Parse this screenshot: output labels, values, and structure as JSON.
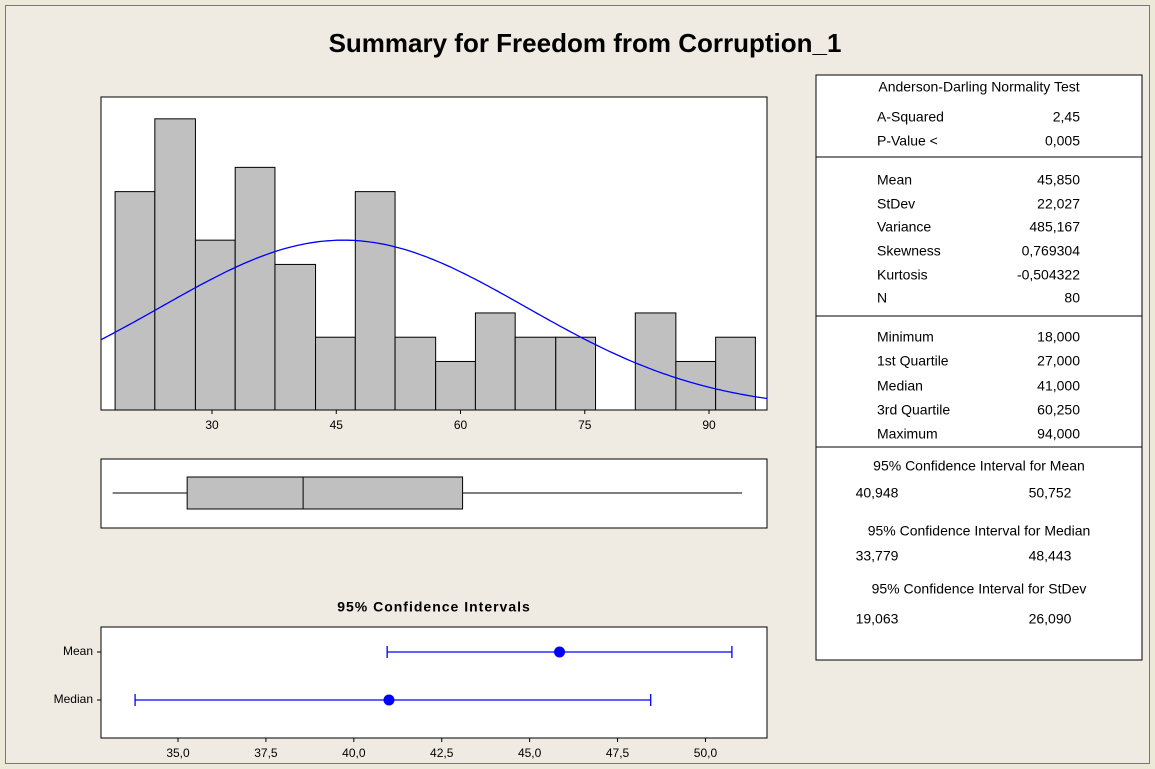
{
  "title": "Summary for Freedom from Corruption_1",
  "chart_data": [
    {
      "type": "histogram",
      "bins": [
        18.3,
        23.1,
        28.0,
        32.8,
        37.6,
        42.5,
        47.3,
        52.1,
        57.0,
        61.8,
        66.6,
        71.5,
        76.3,
        81.1,
        86.0,
        90.8,
        95.6
      ],
      "values": [
        9,
        12,
        7,
        10,
        6,
        3,
        9,
        3,
        2,
        4,
        3,
        3,
        0,
        4,
        2,
        3
      ],
      "color": "#c0c0c0",
      "xlim": [
        16.6,
        97.0
      ],
      "xticks": [
        30,
        45,
        60,
        75,
        90
      ],
      "ylim": [
        0,
        12.9
      ],
      "fit": {
        "mean": 45.85,
        "stdev": 22.027,
        "color": "#0000ff"
      }
    },
    {
      "type": "box",
      "min": 18,
      "q1": 27,
      "median": 41,
      "q3": 60.25,
      "max": 94,
      "color": "#c0c0c0",
      "xlim": [
        16.6,
        97.0
      ]
    },
    {
      "type": "interval",
      "title": "95% Confidence Intervals",
      "categories": [
        "Mean",
        "Median"
      ],
      "values": [
        45.85,
        41
      ],
      "lower": [
        40.948,
        33.779
      ],
      "upper": [
        50.752,
        48.443
      ],
      "color": "#0000ff",
      "xlim": [
        32.81,
        51.75
      ],
      "xticks": [
        {
          "value": 35,
          "label": "35,0"
        },
        {
          "value": 37.5,
          "label": "37,5"
        },
        {
          "value": 40,
          "label": "40,0"
        },
        {
          "value": 42.5,
          "label": "42,5"
        },
        {
          "value": 45,
          "label": "45,0"
        },
        {
          "value": 47.5,
          "label": "47,5"
        },
        {
          "value": 50,
          "label": "50,0"
        }
      ]
    }
  ],
  "stats": {
    "sections": [
      {
        "title": "Anderson-Darling Normality Test",
        "rows": [
          [
            "A-Squared",
            "2,45"
          ],
          [
            "P-Value <",
            "0,005"
          ]
        ]
      },
      {
        "rows": [
          [
            "Mean",
            "45,850"
          ],
          [
            "StDev",
            "22,027"
          ],
          [
            "Variance",
            "485,167"
          ],
          [
            "Skewness",
            "0,769304"
          ],
          [
            "Kurtosis",
            "-0,504322"
          ],
          [
            "N",
            "80"
          ]
        ]
      },
      {
        "rows": [
          [
            "Minimum",
            "18,000"
          ],
          [
            "1st Quartile",
            "27,000"
          ],
          [
            "Median",
            "41,000"
          ],
          [
            "3rd Quartile",
            "60,250"
          ],
          [
            "Maximum",
            "94,000"
          ]
        ]
      },
      {
        "intervals": [
          {
            "title": "95% Confidence Interval for Mean",
            "values": [
              "40,948",
              "50,752"
            ]
          },
          {
            "title": "95% Confidence Interval for Median",
            "values": [
              "33,779",
              "48,443"
            ]
          },
          {
            "title": "95% Confidence Interval for StDev",
            "values": [
              "19,063",
              "26,090"
            ]
          }
        ]
      }
    ]
  }
}
